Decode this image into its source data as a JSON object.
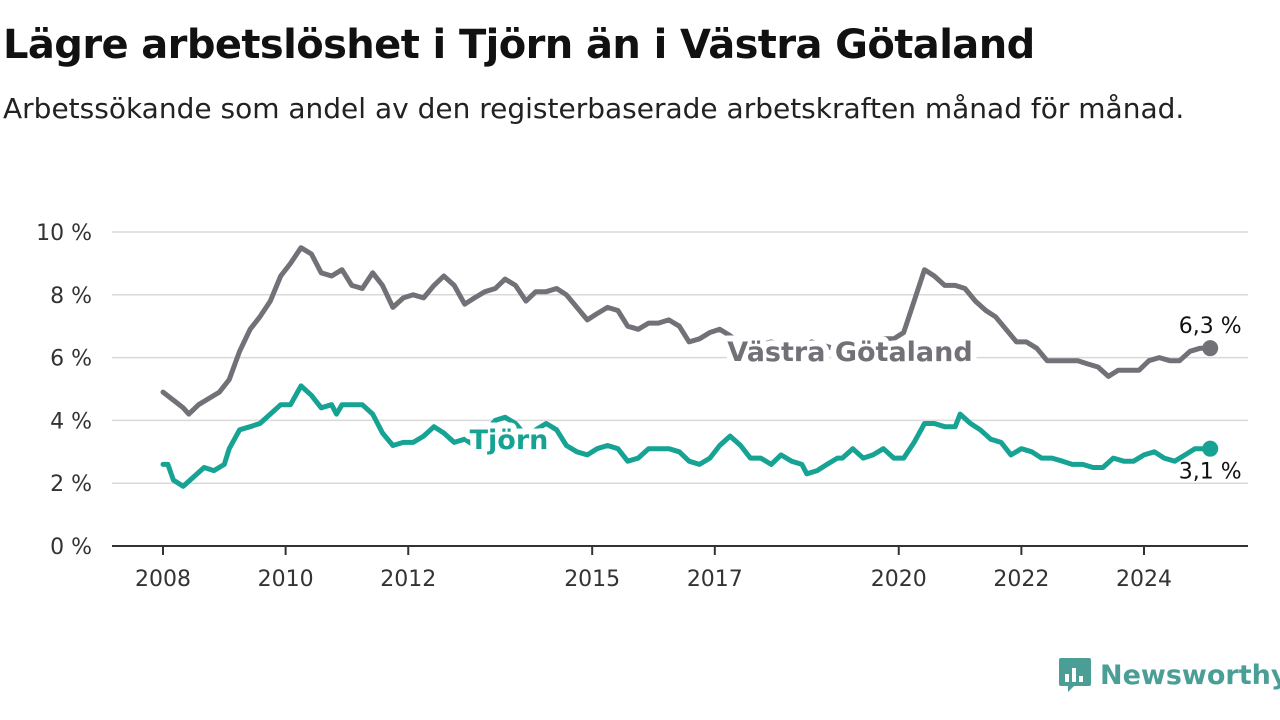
{
  "title": "Lägre arbetslöshet i Tjörn än i Västra Götaland",
  "subtitle": "Arbetssökande som andel av den registerbaserade arbetskraften månad för månad.",
  "brand": {
    "name": "Newsworthy",
    "icon": "newsworthy-logo-icon"
  },
  "colors": {
    "vg": "#727178",
    "tjorn": "#16a394",
    "grid": "#d9d9d9",
    "axis": "#333333"
  },
  "chart_data": {
    "type": "line",
    "y_ticks": [
      {
        "value": 0,
        "label": "0 %"
      },
      {
        "value": 2,
        "label": "2 %"
      },
      {
        "value": 4,
        "label": "4 %"
      },
      {
        "value": 6,
        "label": "6 %"
      },
      {
        "value": 8,
        "label": "8 %"
      },
      {
        "value": 10,
        "label": "10 %"
      }
    ],
    "ylim": [
      0,
      10
    ],
    "xlim": [
      2008,
      2025.4
    ],
    "x_ticks": [
      {
        "value": 2008,
        "label": "2008"
      },
      {
        "value": 2010,
        "label": "2010"
      },
      {
        "value": 2012,
        "label": "2012"
      },
      {
        "value": 2015,
        "label": "2015"
      },
      {
        "value": 2017,
        "label": "2017"
      },
      {
        "value": 2020,
        "label": "2020"
      },
      {
        "value": 2022,
        "label": "2022"
      },
      {
        "value": 2024,
        "label": "2024"
      }
    ],
    "grid": true,
    "series": [
      {
        "name": "Västra Götaland",
        "end_label": "6,3 %",
        "points": [
          [
            2008.0,
            4.9
          ],
          [
            2008.2,
            4.6
          ],
          [
            2008.33,
            4.4
          ],
          [
            2008.42,
            4.2
          ],
          [
            2008.58,
            4.5
          ],
          [
            2008.75,
            4.7
          ],
          [
            2008.92,
            4.9
          ],
          [
            2009.08,
            5.3
          ],
          [
            2009.25,
            6.2
          ],
          [
            2009.42,
            6.9
          ],
          [
            2009.58,
            7.3
          ],
          [
            2009.75,
            7.8
          ],
          [
            2009.92,
            8.6
          ],
          [
            2010.08,
            9.0
          ],
          [
            2010.25,
            9.5
          ],
          [
            2010.42,
            9.3
          ],
          [
            2010.58,
            8.7
          ],
          [
            2010.75,
            8.6
          ],
          [
            2010.92,
            8.8
          ],
          [
            2011.08,
            8.3
          ],
          [
            2011.25,
            8.2
          ],
          [
            2011.42,
            8.7
          ],
          [
            2011.58,
            8.3
          ],
          [
            2011.75,
            7.6
          ],
          [
            2011.92,
            7.9
          ],
          [
            2012.08,
            8.0
          ],
          [
            2012.25,
            7.9
          ],
          [
            2012.42,
            8.3
          ],
          [
            2012.58,
            8.6
          ],
          [
            2012.75,
            8.3
          ],
          [
            2012.92,
            7.7
          ],
          [
            2013.08,
            7.9
          ],
          [
            2013.25,
            8.1
          ],
          [
            2013.42,
            8.2
          ],
          [
            2013.58,
            8.5
          ],
          [
            2013.75,
            8.3
          ],
          [
            2013.92,
            7.8
          ],
          [
            2014.08,
            8.1
          ],
          [
            2014.25,
            8.1
          ],
          [
            2014.42,
            8.2
          ],
          [
            2014.58,
            8.0
          ],
          [
            2014.75,
            7.6
          ],
          [
            2014.92,
            7.2
          ],
          [
            2015.08,
            7.4
          ],
          [
            2015.25,
            7.6
          ],
          [
            2015.42,
            7.5
          ],
          [
            2015.58,
            7.0
          ],
          [
            2015.75,
            6.9
          ],
          [
            2015.92,
            7.1
          ],
          [
            2016.08,
            7.1
          ],
          [
            2016.25,
            7.2
          ],
          [
            2016.42,
            7.0
          ],
          [
            2016.58,
            6.5
          ],
          [
            2016.75,
            6.6
          ],
          [
            2016.92,
            6.8
          ],
          [
            2017.08,
            6.9
          ],
          [
            2017.25,
            6.7
          ],
          [
            2017.42,
            6.4
          ],
          [
            2017.58,
            6.6
          ],
          [
            2017.75,
            6.4
          ],
          [
            2017.92,
            6.5
          ],
          [
            2018.08,
            6.4
          ],
          [
            2018.25,
            6.3
          ],
          [
            2018.42,
            6.2
          ],
          [
            2018.58,
            6.5
          ],
          [
            2018.75,
            6.4
          ],
          [
            2018.92,
            6.3
          ],
          [
            2019.08,
            6.5
          ],
          [
            2019.25,
            6.6
          ],
          [
            2019.42,
            6.4
          ],
          [
            2019.58,
            6.5
          ],
          [
            2019.75,
            6.6
          ],
          [
            2019.92,
            6.6
          ],
          [
            2020.08,
            6.8
          ],
          [
            2020.25,
            7.8
          ],
          [
            2020.42,
            8.8
          ],
          [
            2020.58,
            8.6
          ],
          [
            2020.75,
            8.3
          ],
          [
            2020.92,
            8.3
          ],
          [
            2021.08,
            8.2
          ],
          [
            2021.25,
            7.8
          ],
          [
            2021.42,
            7.5
          ],
          [
            2021.58,
            7.3
          ],
          [
            2021.75,
            6.9
          ],
          [
            2021.92,
            6.5
          ],
          [
            2022.08,
            6.5
          ],
          [
            2022.25,
            6.3
          ],
          [
            2022.42,
            5.9
          ],
          [
            2022.58,
            5.9
          ],
          [
            2022.75,
            5.9
          ],
          [
            2022.92,
            5.9
          ],
          [
            2023.08,
            5.8
          ],
          [
            2023.25,
            5.7
          ],
          [
            2023.42,
            5.4
          ],
          [
            2023.58,
            5.6
          ],
          [
            2023.75,
            5.6
          ],
          [
            2023.92,
            5.6
          ],
          [
            2024.08,
            5.9
          ],
          [
            2024.25,
            6.0
          ],
          [
            2024.42,
            5.9
          ],
          [
            2024.58,
            5.9
          ],
          [
            2024.75,
            6.2
          ],
          [
            2024.92,
            6.3
          ],
          [
            2025.08,
            6.3
          ]
        ]
      },
      {
        "name": "Tjörn",
        "end_label": "3,1 %",
        "points": [
          [
            2008.0,
            2.6
          ],
          [
            2008.08,
            2.6
          ],
          [
            2008.17,
            2.1
          ],
          [
            2008.33,
            1.9
          ],
          [
            2008.5,
            2.2
          ],
          [
            2008.67,
            2.5
          ],
          [
            2008.83,
            2.4
          ],
          [
            2009.0,
            2.6
          ],
          [
            2009.08,
            3.1
          ],
          [
            2009.25,
            3.7
          ],
          [
            2009.42,
            3.8
          ],
          [
            2009.58,
            3.9
          ],
          [
            2009.75,
            4.2
          ],
          [
            2009.92,
            4.5
          ],
          [
            2010.08,
            4.5
          ],
          [
            2010.25,
            5.1
          ],
          [
            2010.42,
            4.8
          ],
          [
            2010.58,
            4.4
          ],
          [
            2010.75,
            4.5
          ],
          [
            2010.83,
            4.2
          ],
          [
            2010.92,
            4.5
          ],
          [
            2011.08,
            4.5
          ],
          [
            2011.25,
            4.5
          ],
          [
            2011.42,
            4.2
          ],
          [
            2011.58,
            3.6
          ],
          [
            2011.75,
            3.2
          ],
          [
            2011.92,
            3.3
          ],
          [
            2012.08,
            3.3
          ],
          [
            2012.25,
            3.5
          ],
          [
            2012.42,
            3.8
          ],
          [
            2012.58,
            3.6
          ],
          [
            2012.75,
            3.3
          ],
          [
            2012.92,
            3.4
          ],
          [
            2013.08,
            3.2
          ],
          [
            2013.25,
            3.6
          ],
          [
            2013.42,
            4.0
          ],
          [
            2013.58,
            4.1
          ],
          [
            2013.75,
            3.9
          ],
          [
            2013.92,
            3.5
          ],
          [
            2014.08,
            3.7
          ],
          [
            2014.25,
            3.9
          ],
          [
            2014.42,
            3.7
          ],
          [
            2014.58,
            3.2
          ],
          [
            2014.75,
            3.0
          ],
          [
            2014.92,
            2.9
          ],
          [
            2015.08,
            3.1
          ],
          [
            2015.25,
            3.2
          ],
          [
            2015.42,
            3.1
          ],
          [
            2015.58,
            2.7
          ],
          [
            2015.75,
            2.8
          ],
          [
            2015.92,
            3.1
          ],
          [
            2016.08,
            3.1
          ],
          [
            2016.25,
            3.1
          ],
          [
            2016.42,
            3.0
          ],
          [
            2016.58,
            2.7
          ],
          [
            2016.75,
            2.6
          ],
          [
            2016.92,
            2.8
          ],
          [
            2017.08,
            3.2
          ],
          [
            2017.25,
            3.5
          ],
          [
            2017.42,
            3.2
          ],
          [
            2017.58,
            2.8
          ],
          [
            2017.75,
            2.8
          ],
          [
            2017.92,
            2.6
          ],
          [
            2018.08,
            2.9
          ],
          [
            2018.25,
            2.7
          ],
          [
            2018.42,
            2.6
          ],
          [
            2018.5,
            2.3
          ],
          [
            2018.67,
            2.4
          ],
          [
            2018.83,
            2.6
          ],
          [
            2019.0,
            2.8
          ],
          [
            2019.08,
            2.8
          ],
          [
            2019.25,
            3.1
          ],
          [
            2019.42,
            2.8
          ],
          [
            2019.58,
            2.9
          ],
          [
            2019.75,
            3.1
          ],
          [
            2019.92,
            2.8
          ],
          [
            2020.08,
            2.8
          ],
          [
            2020.25,
            3.3
          ],
          [
            2020.42,
            3.9
          ],
          [
            2020.58,
            3.9
          ],
          [
            2020.75,
            3.8
          ],
          [
            2020.92,
            3.8
          ],
          [
            2021.0,
            4.2
          ],
          [
            2021.17,
            3.9
          ],
          [
            2021.33,
            3.7
          ],
          [
            2021.5,
            3.4
          ],
          [
            2021.67,
            3.3
          ],
          [
            2021.83,
            2.9
          ],
          [
            2022.0,
            3.1
          ],
          [
            2022.17,
            3.0
          ],
          [
            2022.33,
            2.8
          ],
          [
            2022.5,
            2.8
          ],
          [
            2022.67,
            2.7
          ],
          [
            2022.83,
            2.6
          ],
          [
            2023.0,
            2.6
          ],
          [
            2023.17,
            2.5
          ],
          [
            2023.33,
            2.5
          ],
          [
            2023.5,
            2.8
          ],
          [
            2023.67,
            2.7
          ],
          [
            2023.83,
            2.7
          ],
          [
            2024.0,
            2.9
          ],
          [
            2024.17,
            3.0
          ],
          [
            2024.33,
            2.8
          ],
          [
            2024.5,
            2.7
          ],
          [
            2024.67,
            2.9
          ],
          [
            2024.83,
            3.1
          ],
          [
            2025.08,
            3.1
          ]
        ]
      }
    ]
  }
}
